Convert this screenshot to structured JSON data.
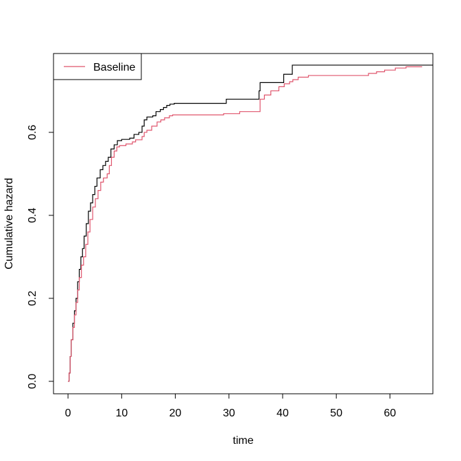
{
  "chart_data": {
    "type": "line",
    "title": "",
    "xlabel": "time",
    "ylabel": "Cumulative hazard",
    "xlim": [
      -2.7,
      68
    ],
    "ylim": [
      -0.03,
      0.79
    ],
    "x_ticks": [
      0,
      10,
      20,
      30,
      40,
      50,
      60
    ],
    "y_ticks": [
      0.0,
      0.2,
      0.4,
      0.6
    ],
    "x_tick_labels": [
      "0",
      "10",
      "20",
      "30",
      "40",
      "50",
      "60"
    ],
    "y_tick_labels": [
      "0.0",
      "0.2",
      "0.4",
      "0.6"
    ],
    "grid": false,
    "legend": {
      "position": "top-left",
      "entries": [
        {
          "label": "Baseline",
          "color": "#DF536B"
        }
      ]
    },
    "series": [
      {
        "color": "#000000",
        "step": true,
        "points": [
          [
            0.0,
            0.0
          ],
          [
            0.2,
            0.02
          ],
          [
            0.4,
            0.06
          ],
          [
            0.6,
            0.1
          ],
          [
            0.9,
            0.14
          ],
          [
            1.2,
            0.17
          ],
          [
            1.5,
            0.2
          ],
          [
            1.8,
            0.24
          ],
          [
            2.1,
            0.27
          ],
          [
            2.4,
            0.3
          ],
          [
            2.7,
            0.32
          ],
          [
            3.0,
            0.35
          ],
          [
            3.4,
            0.38
          ],
          [
            3.8,
            0.41
          ],
          [
            4.2,
            0.43
          ],
          [
            4.6,
            0.45
          ],
          [
            5.0,
            0.47
          ],
          [
            5.4,
            0.49
          ],
          [
            6.0,
            0.51
          ],
          [
            6.5,
            0.52
          ],
          [
            7.0,
            0.53
          ],
          [
            7.5,
            0.54
          ],
          [
            8.0,
            0.56
          ],
          [
            8.6,
            0.57
          ],
          [
            9.2,
            0.58
          ],
          [
            10.0,
            0.583
          ],
          [
            11.5,
            0.586
          ],
          [
            12.3,
            0.595
          ],
          [
            13.2,
            0.6
          ],
          [
            13.8,
            0.615
          ],
          [
            14.2,
            0.63
          ],
          [
            14.7,
            0.637
          ],
          [
            15.8,
            0.64
          ],
          [
            16.4,
            0.65
          ],
          [
            17.2,
            0.655
          ],
          [
            17.8,
            0.66
          ],
          [
            18.4,
            0.665
          ],
          [
            19.0,
            0.668
          ],
          [
            19.8,
            0.67
          ],
          [
            29.5,
            0.68
          ],
          [
            35.6,
            0.7
          ],
          [
            35.8,
            0.72
          ],
          [
            40.2,
            0.74
          ],
          [
            41.8,
            0.762
          ],
          [
            68.0,
            0.762
          ]
        ]
      },
      {
        "color": "#DF536B",
        "step": true,
        "name": "Baseline",
        "points": [
          [
            0.0,
            0.0
          ],
          [
            0.2,
            0.02
          ],
          [
            0.4,
            0.06
          ],
          [
            0.6,
            0.1
          ],
          [
            0.9,
            0.13
          ],
          [
            1.2,
            0.16
          ],
          [
            1.5,
            0.19
          ],
          [
            1.8,
            0.22
          ],
          [
            2.1,
            0.25
          ],
          [
            2.5,
            0.28
          ],
          [
            2.9,
            0.3
          ],
          [
            3.3,
            0.33
          ],
          [
            3.7,
            0.36
          ],
          [
            4.1,
            0.39
          ],
          [
            4.6,
            0.42
          ],
          [
            5.1,
            0.44
          ],
          [
            5.6,
            0.46
          ],
          [
            6.1,
            0.48
          ],
          [
            6.6,
            0.49
          ],
          [
            7.3,
            0.5
          ],
          [
            7.7,
            0.52
          ],
          [
            8.1,
            0.54
          ],
          [
            8.6,
            0.555
          ],
          [
            9.1,
            0.565
          ],
          [
            9.6,
            0.568
          ],
          [
            10.8,
            0.572
          ],
          [
            12.0,
            0.577
          ],
          [
            12.6,
            0.582
          ],
          [
            13.8,
            0.59
          ],
          [
            14.2,
            0.6
          ],
          [
            14.7,
            0.605
          ],
          [
            15.6,
            0.615
          ],
          [
            16.6,
            0.625
          ],
          [
            17.3,
            0.63
          ],
          [
            18.0,
            0.635
          ],
          [
            18.9,
            0.64
          ],
          [
            19.5,
            0.642
          ],
          [
            29.0,
            0.645
          ],
          [
            32.0,
            0.65
          ],
          [
            35.8,
            0.68
          ],
          [
            36.6,
            0.69
          ],
          [
            37.8,
            0.7
          ],
          [
            39.3,
            0.71
          ],
          [
            40.3,
            0.717
          ],
          [
            41.3,
            0.722
          ],
          [
            41.9,
            0.727
          ],
          [
            42.9,
            0.733
          ],
          [
            44.8,
            0.737
          ],
          [
            56.0,
            0.742
          ],
          [
            57.5,
            0.746
          ],
          [
            59.0,
            0.75
          ],
          [
            61.0,
            0.755
          ],
          [
            63.0,
            0.758
          ],
          [
            66.0,
            0.758
          ]
        ]
      }
    ]
  }
}
